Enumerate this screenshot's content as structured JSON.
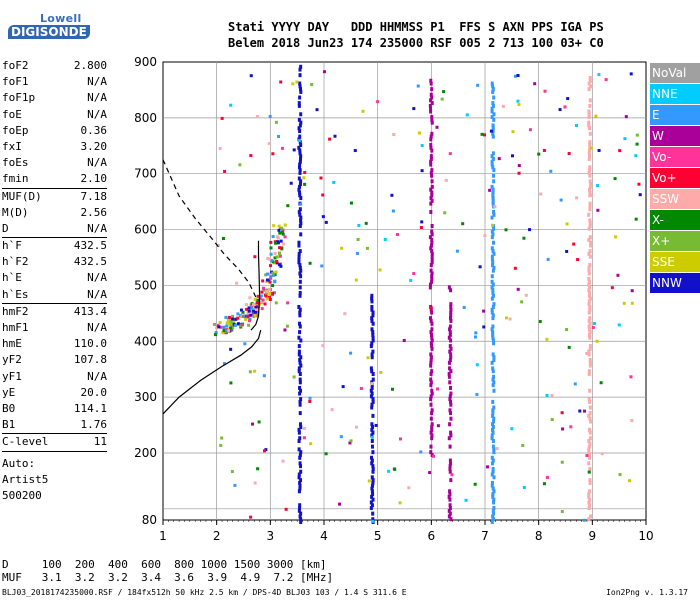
{
  "logo": {
    "line1": "Lowell",
    "line2": "DIGISONDE"
  },
  "header": {
    "line1": "Stati YYYY DAY   DDD HHMMSS P1  FFS S AXN PPS IGA PS",
    "line2": "Belem 2018 Jun23 174 235000 RSF 005 2 713 100 03+ C0"
  },
  "params": [
    {
      "name": "foF2",
      "value": "2.800",
      "sep": false
    },
    {
      "name": "foF1",
      "value": "N/A",
      "sep": false
    },
    {
      "name": "foF1p",
      "value": "N/A",
      "sep": false
    },
    {
      "name": "foE",
      "value": "N/A",
      "sep": false
    },
    {
      "name": "foEp",
      "value": "0.36",
      "sep": false
    },
    {
      "name": "fxI",
      "value": "3.20",
      "sep": false
    },
    {
      "name": "foEs",
      "value": "N/A",
      "sep": false
    },
    {
      "name": "fmin",
      "value": "2.10",
      "sep": true
    },
    {
      "name": "MUF(D)",
      "value": "7.18",
      "sep": false
    },
    {
      "name": "M(D)",
      "value": "2.56",
      "sep": false
    },
    {
      "name": "D",
      "value": "N/A",
      "sep": true
    },
    {
      "name": "h`F",
      "value": "432.5",
      "sep": false
    },
    {
      "name": "h`F2",
      "value": "432.5",
      "sep": false
    },
    {
      "name": "h`E",
      "value": "N/A",
      "sep": false
    },
    {
      "name": "h`Es",
      "value": "N/A",
      "sep": true
    },
    {
      "name": "hmF2",
      "value": "413.4",
      "sep": false
    },
    {
      "name": "hmF1",
      "value": "N/A",
      "sep": false
    },
    {
      "name": "hmE",
      "value": "110.0",
      "sep": false
    },
    {
      "name": "yF2",
      "value": "107.8",
      "sep": false
    },
    {
      "name": "yF1",
      "value": "N/A",
      "sep": false
    },
    {
      "name": "yE",
      "value": "20.0",
      "sep": false
    },
    {
      "name": "B0",
      "value": "114.1",
      "sep": false
    },
    {
      "name": "B1",
      "value": "1.76",
      "sep": true
    },
    {
      "name": "C-level",
      "value": "11",
      "sep": true
    }
  ],
  "auto": [
    "Auto:",
    "Artist5",
    "500200"
  ],
  "legend": [
    {
      "label": "NoVal",
      "color": "#a0a0a0"
    },
    {
      "label": "NNE",
      "color": "#00ccff"
    },
    {
      "label": "E",
      "color": "#3399ff"
    },
    {
      "label": "W",
      "color": "#aa0099"
    },
    {
      "label": "Vo-",
      "color": "#ff3399"
    },
    {
      "label": "Vo+",
      "color": "#ff0033"
    },
    {
      "label": "SSW",
      "color": "#ffaaaa"
    },
    {
      "label": "X-",
      "color": "#008800"
    },
    {
      "label": "X+",
      "color": "#77bb33"
    },
    {
      "label": "SSE",
      "color": "#cccc00"
    },
    {
      "label": "NNW",
      "color": "#1111cc"
    }
  ],
  "dmuf": {
    "d_label": "D",
    "d_values": [
      "100",
      "200",
      "400",
      "600",
      "800",
      "1000",
      "1500",
      "3000"
    ],
    "d_unit": "[km]",
    "muf_label": "MUF",
    "muf_values": [
      "3.1",
      "3.2",
      "3.2",
      "3.4",
      "3.6",
      "3.9",
      "4.9",
      "7.2"
    ],
    "muf_unit": "[MHz]"
  },
  "footer": {
    "left": "BLJ03_2018174235000.RSF / 184fx512h 50 kHz 2.5 km / DPS-4D BLJ03 103 / 1.4 S 311.6 E",
    "right": "Ion2Png v. 1.3.17"
  },
  "chart_data": {
    "type": "scatter",
    "title": "",
    "xlabel": "",
    "ylabel": "",
    "xlim": [
      1,
      10
    ],
    "ylim": [
      80,
      900
    ],
    "xticks": [
      1,
      2,
      3,
      4,
      5,
      6,
      7,
      8,
      9,
      10
    ],
    "yticks": [
      80,
      100,
      200,
      300,
      400,
      500,
      600,
      700,
      800,
      900
    ],
    "yticklabels": [
      80,
      200,
      300,
      400,
      500,
      600,
      700,
      800,
      900
    ],
    "grid": true,
    "profile_solid": [
      [
        2.64,
        420
      ],
      [
        2.73,
        430
      ],
      [
        2.78,
        445
      ],
      [
        2.8,
        480
      ],
      [
        2.79,
        520
      ],
      [
        2.78,
        555
      ],
      [
        2.78,
        580
      ]
    ],
    "profile_lower": [
      [
        1.0,
        270
      ],
      [
        1.3,
        300
      ],
      [
        1.7,
        330
      ],
      [
        2.1,
        355
      ],
      [
        2.45,
        375
      ],
      [
        2.65,
        390
      ],
      [
        2.78,
        405
      ],
      [
        2.82,
        420
      ]
    ],
    "profile_dashed": [
      [
        1.0,
        725
      ],
      [
        1.3,
        660
      ],
      [
        1.6,
        620
      ],
      [
        1.9,
        585
      ],
      [
        2.15,
        555
      ],
      [
        2.4,
        530
      ],
      [
        2.6,
        505
      ],
      [
        2.75,
        475
      ]
    ],
    "trace_points": [
      [
        2.0,
        427
      ],
      [
        2.1,
        430
      ],
      [
        2.2,
        433
      ],
      [
        2.3,
        438
      ],
      [
        2.4,
        443
      ],
      [
        2.5,
        450
      ],
      [
        2.6,
        458
      ],
      [
        2.7,
        468
      ],
      [
        2.8,
        482
      ],
      [
        2.9,
        500
      ],
      [
        2.95,
        520
      ],
      [
        3.0,
        545
      ],
      [
        3.05,
        570
      ],
      [
        3.08,
        600
      ]
    ],
    "spread_columns": [
      {
        "x": 6.0,
        "y_from": 200,
        "y_to": 880,
        "series": "W"
      },
      {
        "x": 6.35,
        "y_from": 80,
        "y_to": 510,
        "series": "W"
      },
      {
        "x": 8.95,
        "y_from": 80,
        "y_to": 880,
        "series": "SSW"
      },
      {
        "x": 7.15,
        "y_from": 80,
        "y_to": 870,
        "series": "E"
      },
      {
        "x": 3.55,
        "y_from": 80,
        "y_to": 900,
        "series": "NNW"
      },
      {
        "x": 4.9,
        "y_from": 80,
        "y_to": 500,
        "series": "NNW"
      }
    ]
  }
}
